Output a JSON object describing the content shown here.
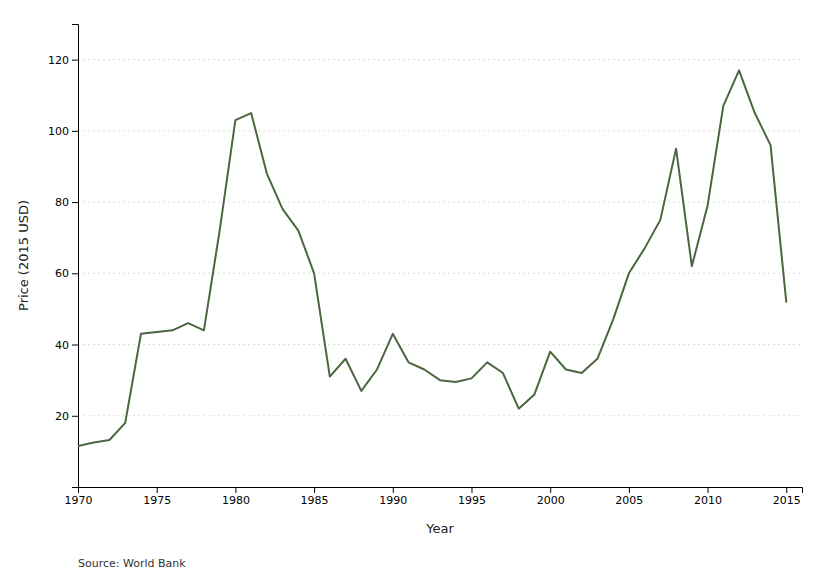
{
  "chart_data": {
    "type": "line",
    "x": [
      1970,
      1971,
      1972,
      1973,
      1974,
      1975,
      1976,
      1977,
      1978,
      1979,
      1980,
      1981,
      1982,
      1983,
      1984,
      1985,
      1986,
      1987,
      1988,
      1989,
      1990,
      1991,
      1992,
      1993,
      1994,
      1995,
      1996,
      1997,
      1998,
      1999,
      2000,
      2001,
      2002,
      2003,
      2004,
      2005,
      2006,
      2007,
      2008,
      2009,
      2010,
      2011,
      2012,
      2013,
      2014,
      2015
    ],
    "values": [
      11.5,
      12.5,
      13.2,
      18.0,
      43.0,
      43.5,
      44.0,
      46.0,
      44.0,
      72.0,
      103.0,
      105.0,
      88.0,
      78.0,
      72.0,
      60.0,
      31.0,
      36.0,
      27.0,
      33.0,
      43.0,
      35.0,
      33.0,
      30.0,
      29.5,
      30.5,
      35.0,
      32.0,
      22.0,
      26.0,
      38.0,
      33.0,
      32.0,
      36.0,
      47.0,
      60.0,
      67.0,
      75.0,
      95.0,
      62.0,
      79.0,
      107.0,
      117.0,
      105.0,
      96.0,
      52.0
    ],
    "color": "#4a6741",
    "x_label": "Year",
    "y_label": "Price (2015 USD)",
    "annotation": "Source: World Bank",
    "xlim": [
      1970,
      2016
    ],
    "ylim": [
      0,
      130
    ],
    "xticks": [
      1970,
      1975,
      1980,
      1985,
      1990,
      1995,
      2000,
      2005,
      2010,
      2015
    ],
    "yticks": [
      20,
      40,
      60,
      80,
      100,
      120
    ],
    "grid": true
  }
}
